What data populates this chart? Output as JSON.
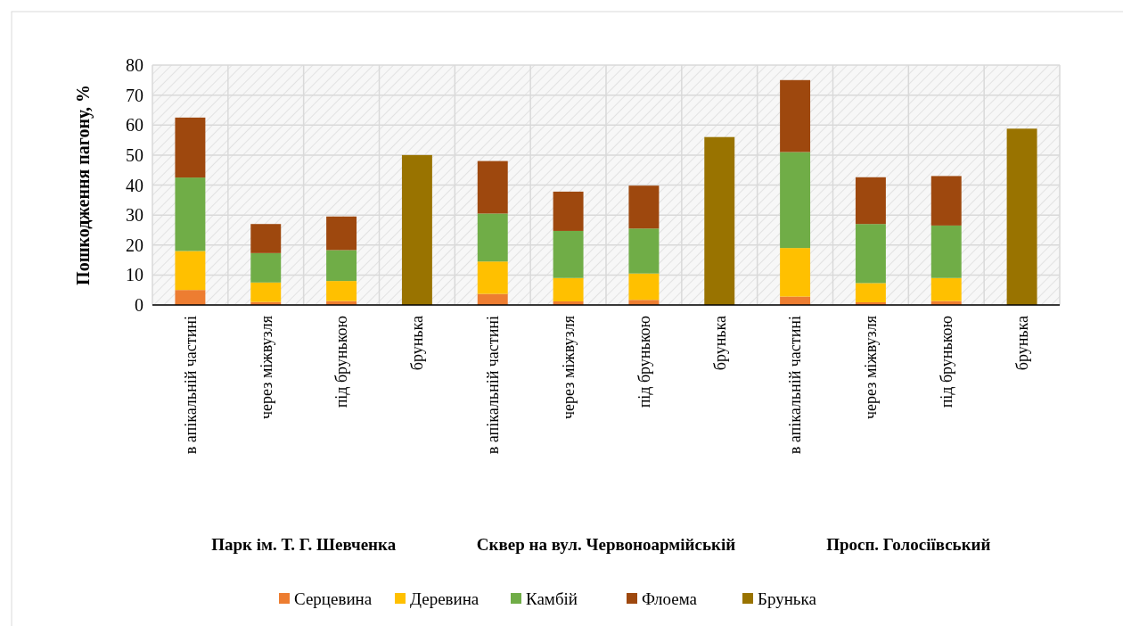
{
  "chart_data": {
    "type": "bar",
    "stacked": true,
    "ylabel": "Пошкодження пагону, %",
    "categories": [
      "в апікальній частині",
      "через міжвузля",
      "під брунькою",
      "брунька",
      "в апікальній частині",
      "через міжвузля",
      "під брунькою",
      "брунька",
      "в апікальній частині",
      "через міжвузля",
      "під брунькою",
      "брунька"
    ],
    "series": [
      {
        "name": "Серцевина",
        "color": "#ed7d31",
        "values": [
          5,
          1,
          1.3,
          null,
          3.7,
          1.2,
          1.7,
          null,
          2.8,
          0.9,
          1.3,
          null
        ]
      },
      {
        "name": "Деревина",
        "color": "#ffc000",
        "values": [
          13,
          6.5,
          6.7,
          null,
          10.8,
          7.8,
          8.8,
          null,
          16.2,
          6.4,
          7.7,
          null
        ]
      },
      {
        "name": "Камбій",
        "color": "#70ad47",
        "values": [
          24.5,
          9.8,
          10.3,
          null,
          16,
          15.7,
          15,
          null,
          32,
          19.7,
          17.5,
          null
        ]
      },
      {
        "name": "Флоема",
        "color": "#9e480e",
        "values": [
          20,
          9.7,
          11.2,
          null,
          17.5,
          13.1,
          14.3,
          null,
          24,
          15.6,
          16.5,
          null
        ]
      },
      {
        "name": "Брунька",
        "color": "#997300",
        "values": [
          null,
          null,
          null,
          50,
          null,
          null,
          null,
          56,
          null,
          null,
          null,
          58.8
        ]
      }
    ],
    "ylim": [
      0,
      80
    ],
    "yticks": [
      0,
      10,
      20,
      30,
      40,
      50,
      60,
      70,
      80
    ],
    "grid": true,
    "legend": "bottom",
    "annotations": [
      "Парк ім. Т. Г. Шевченка",
      "Сквер на вул. Червоноармійській",
      "Просп. Голосіївський"
    ]
  }
}
